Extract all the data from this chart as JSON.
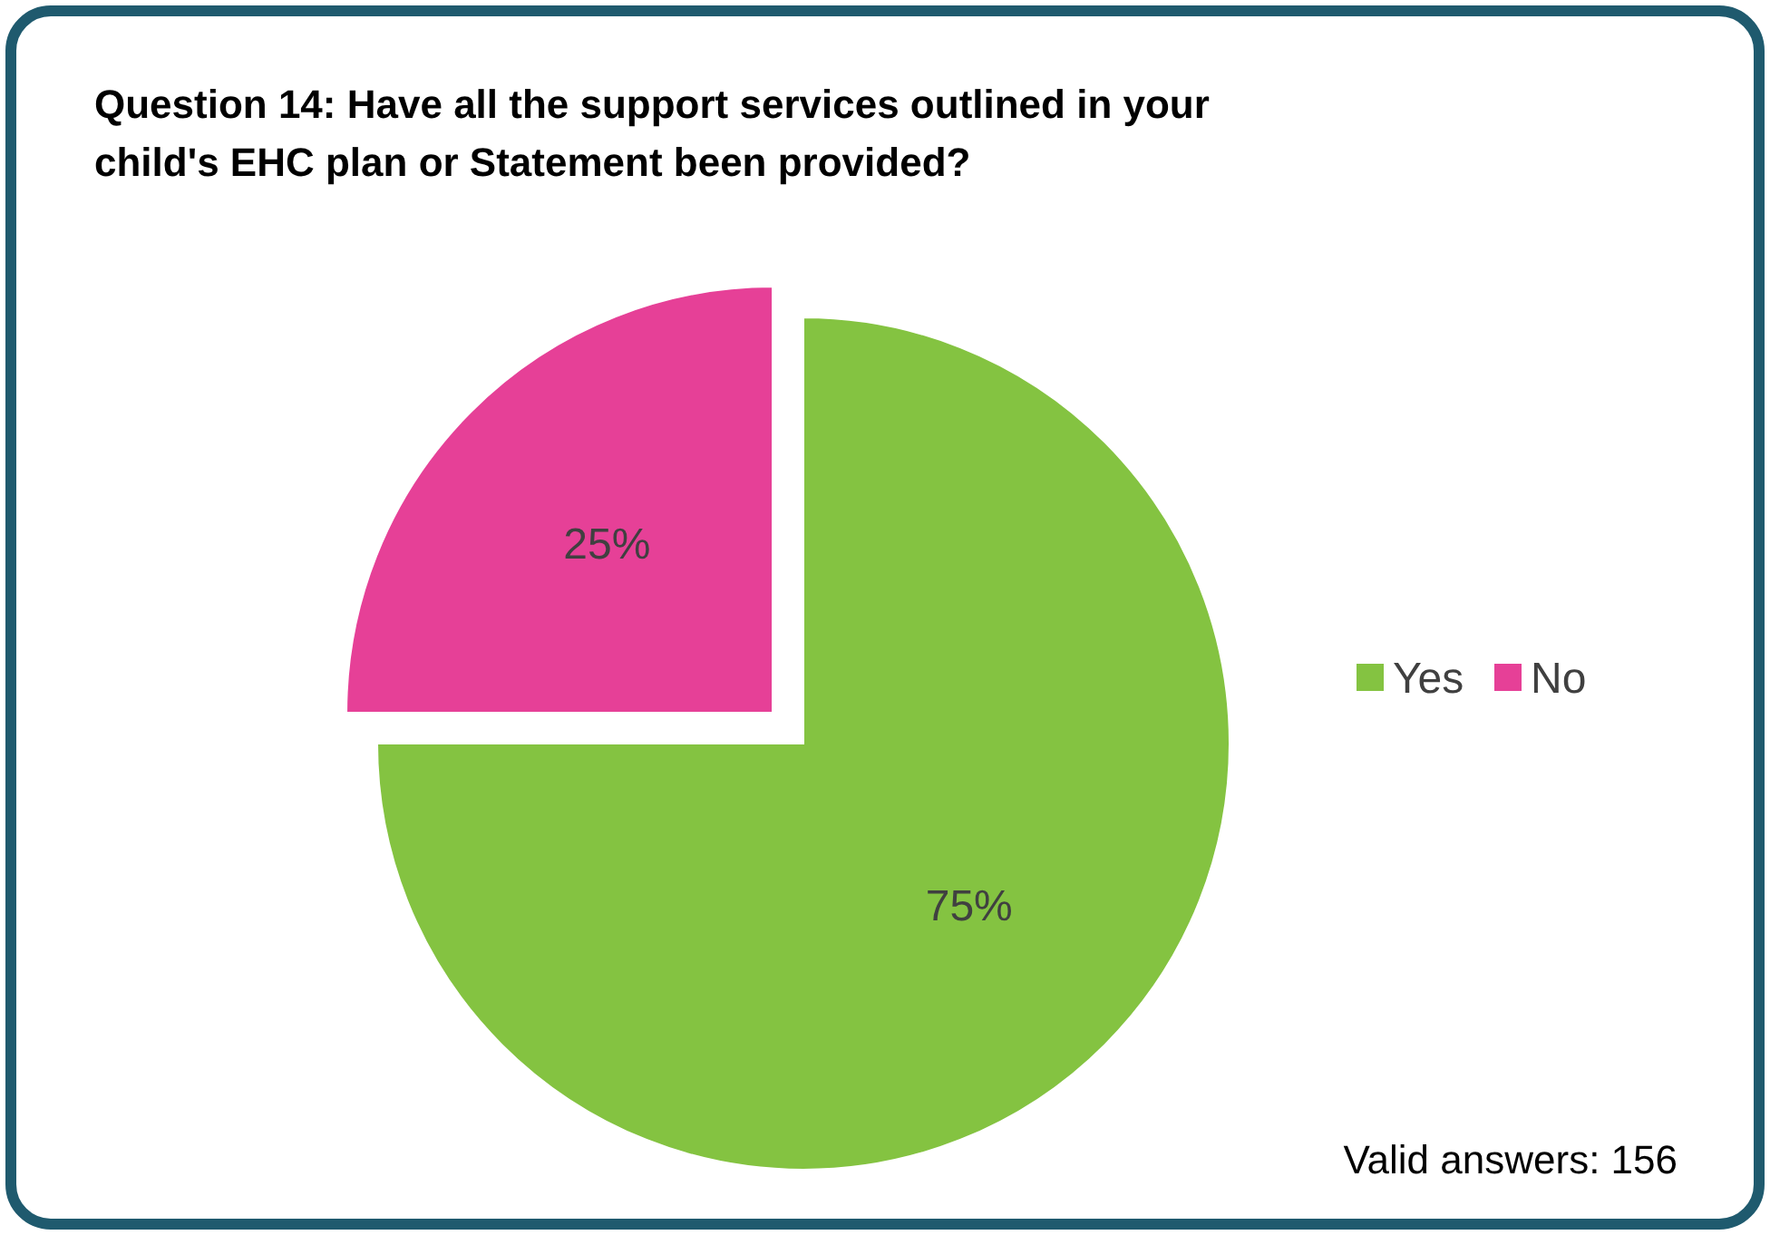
{
  "chart_data": {
    "type": "pie",
    "title": "Question 14: Have all the support services outlined in your child's EHC plan or Statement been provided?",
    "categories": [
      "Yes",
      "No"
    ],
    "values": [
      75,
      25
    ],
    "colors": [
      "#84c341",
      "#e64097"
    ],
    "value_labels": [
      "75%",
      "25%"
    ],
    "legend": "right",
    "annotations": [
      "Valid answers: 156"
    ]
  }
}
